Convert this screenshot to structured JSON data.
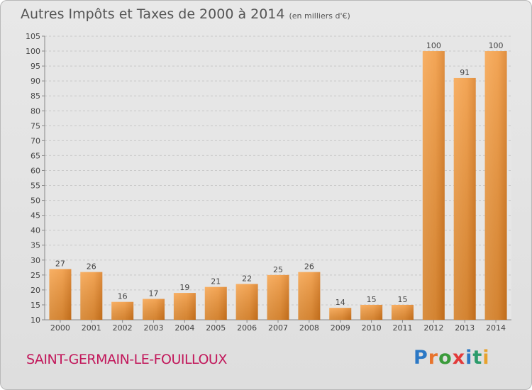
{
  "title": {
    "main": "Autres Impôts et Taxes de 2000 à 2014",
    "unit": "(en milliers d'€)"
  },
  "commune_name": "SAINT-GERMAIN-LE-FOUILLOUX",
  "logo": {
    "letters": [
      "P",
      "r",
      "o",
      "x",
      "i",
      "t",
      "i"
    ],
    "colors": [
      "#2b78c5",
      "#e8742d",
      "#3b9b3b",
      "#e23a3a",
      "#2b78c5",
      "#2b9b6b",
      "#e8a22d"
    ]
  },
  "chart_data": {
    "type": "bar",
    "categories": [
      "2000",
      "2001",
      "2002",
      "2003",
      "2004",
      "2005",
      "2006",
      "2007",
      "2008",
      "2009",
      "2010",
      "2011",
      "2012",
      "2013",
      "2014"
    ],
    "values": [
      27,
      26,
      16,
      17,
      19,
      21,
      22,
      25,
      26,
      14,
      15,
      15,
      100,
      91,
      100
    ],
    "yticks": [
      10,
      15,
      20,
      25,
      30,
      35,
      40,
      45,
      50,
      55,
      60,
      65,
      70,
      75,
      80,
      85,
      90,
      95,
      100,
      105
    ],
    "ylim": [
      10,
      105
    ],
    "grid": true,
    "bar_color": "#f0923a",
    "title": "Autres Impôts et Taxes de 2000 à 2014",
    "xlabel": "",
    "ylabel": ""
  }
}
